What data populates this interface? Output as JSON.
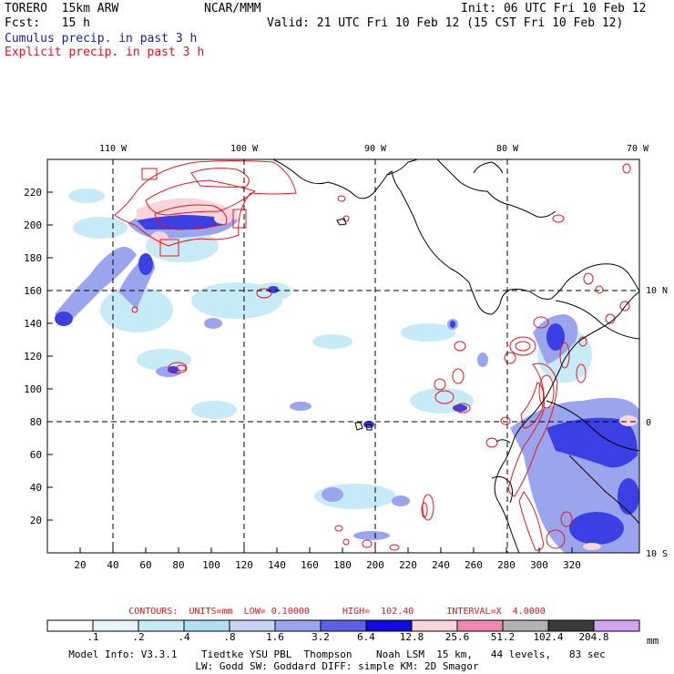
{
  "header": {
    "model": "TORERO  15km ARW",
    "center": "NCAR/MMM",
    "init": "Init: 06 UTC Fri 10 Feb 12",
    "fcst": "Fcst:   15 h",
    "valid": "Valid: 21 UTC Fri 10 Feb 12 (15 CST Fri 10 Feb 12)",
    "cumulus": "Cumulus precip. in past 3 h",
    "explicit": "Explicit precip. in past 3 h"
  },
  "map": {
    "lon_labels": [
      "110 W",
      "100 W",
      "90 W",
      "80 W",
      "70 W"
    ],
    "lat_labels": [
      "10 N",
      "0",
      "10 S"
    ],
    "x_ticks": [
      "20",
      "40",
      "60",
      "80",
      "100",
      "120",
      "140",
      "160",
      "180",
      "200",
      "220",
      "240",
      "260",
      "280",
      "300",
      "320"
    ],
    "y_ticks": [
      "20",
      "40",
      "60",
      "80",
      "100",
      "120",
      "140",
      "160",
      "180",
      "200",
      "220"
    ],
    "colors": {
      "coast": "#000000",
      "explicit": "#e8141e",
      "grid": "#000000"
    }
  },
  "contours_line": "CONTOURS:  UNITS=mm  LOW= 0.10000      HIGH=  102.40      INTERVAL=X  4.0000",
  "colorbar": {
    "labels": [
      ".1",
      ".2",
      ".4",
      ".8",
      "1.6",
      "3.2",
      "6.4",
      "12.8",
      "25.6",
      "51.2",
      "102.4",
      "204.8"
    ],
    "unit": "mm",
    "colors": [
      "#ffffff",
      "#e6f5fb",
      "#c7eaf7",
      "#aedff3",
      "#c8d4f5",
      "#9aa5ee",
      "#5c62e6",
      "#0d0de0",
      "#f7d5da",
      "#f088b4",
      "#b2b2b2",
      "#3b3b3b",
      "#d2a5f0"
    ]
  },
  "footer": {
    "line1": "Model Info: V3.3.1    Tiedtke YSU PBL  Thompson    Noah LSM  15 km,   44 levels,   83 sec",
    "line2": "LW: Godd SW: Goddard DIFF: simple KM: 2D Smagor"
  }
}
